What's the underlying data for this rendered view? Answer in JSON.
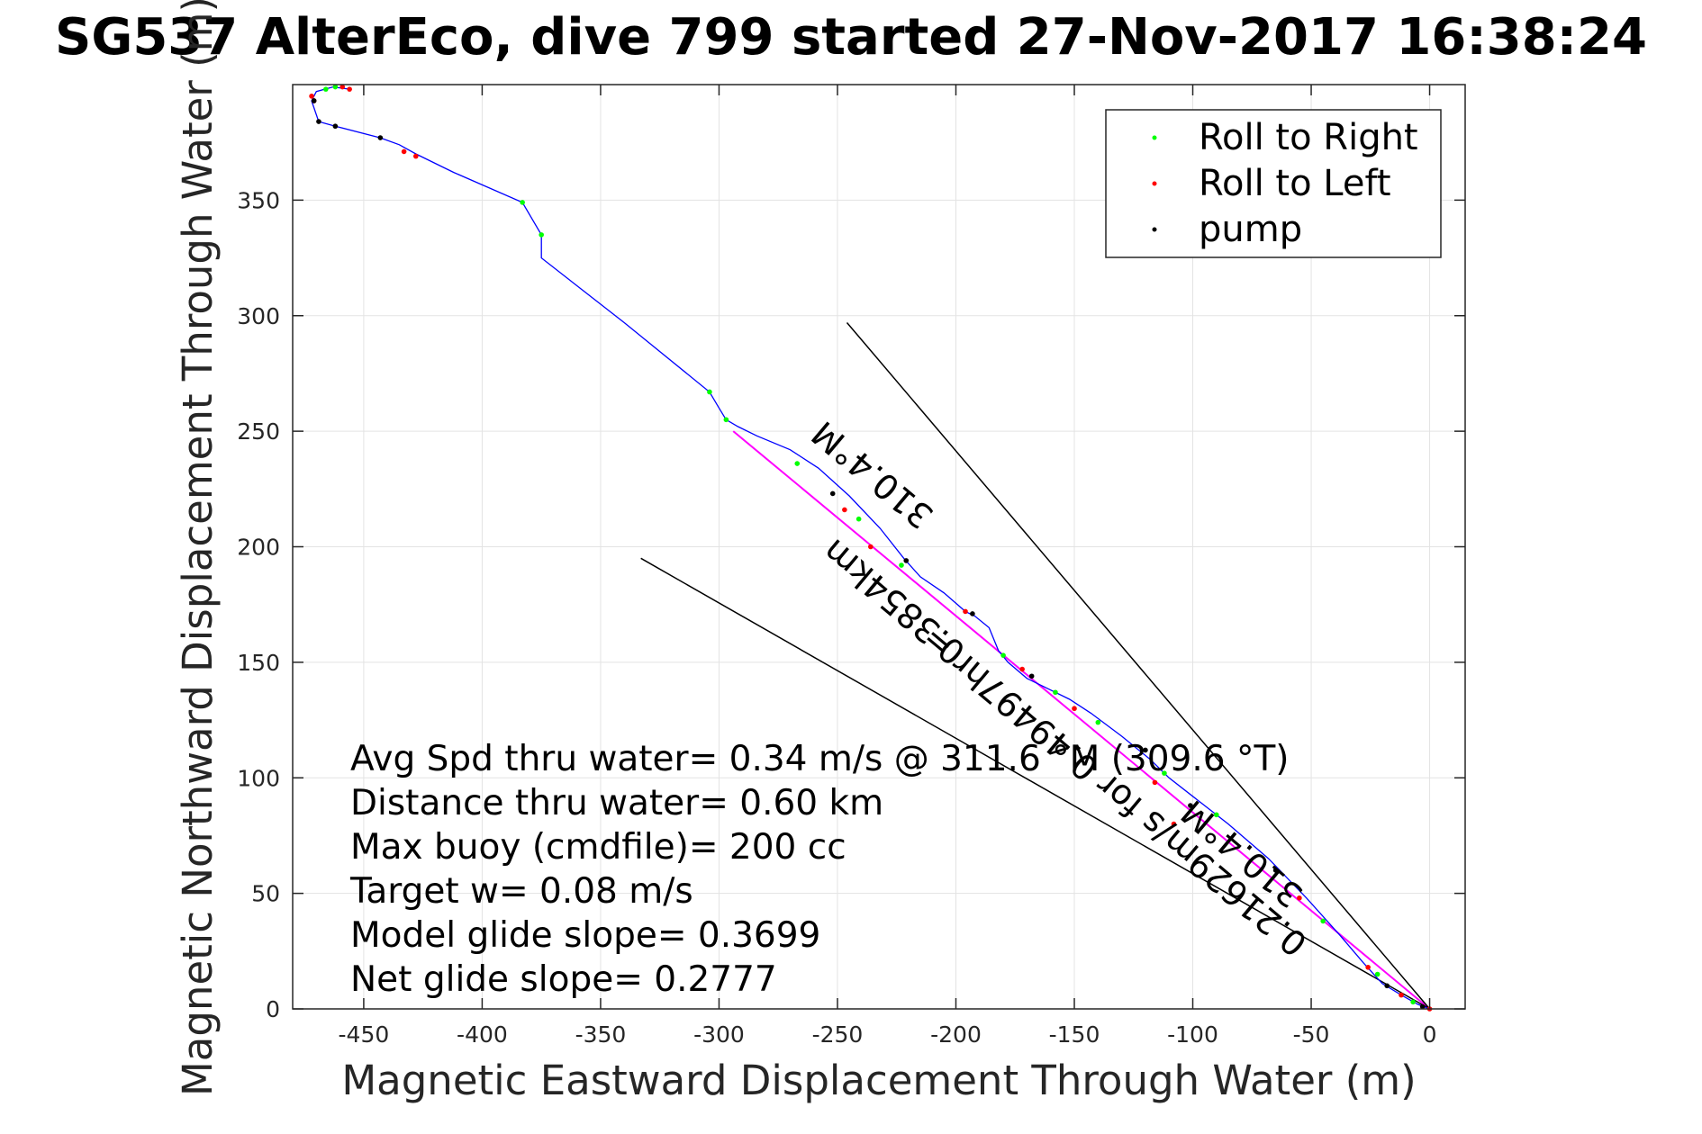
{
  "chart_data": {
    "type": "line",
    "title": "SG537 AlterEco, dive 799 started 27-Nov-2017 16:38:24",
    "xlabel": "Magnetic Eastward Displacement Through Water (m)",
    "ylabel": "Magnetic Northward Displacement Through Water (m)",
    "xlim": [
      -480,
      15
    ],
    "ylim": [
      0,
      400
    ],
    "xticks": [
      -450,
      -400,
      -350,
      -300,
      -250,
      -200,
      -150,
      -100,
      -50,
      0
    ],
    "yticks": [
      0,
      50,
      100,
      150,
      200,
      250,
      300,
      350
    ],
    "grid": true,
    "legend_position": "top-right",
    "legend": [
      {
        "label": "Roll to Right",
        "color": "#00ff00"
      },
      {
        "label": "Roll to Left",
        "color": "#ff0000"
      },
      {
        "label": "pump",
        "color": "#000000"
      }
    ],
    "track": {
      "color": "#0000ff",
      "x": [
        0,
        -5,
        -12,
        -20,
        -28,
        -38,
        -52,
        -68,
        -85,
        -100,
        -110,
        -118,
        -130,
        -143,
        -152,
        -160,
        -170,
        -178,
        -182,
        -186,
        -192,
        -196,
        -205,
        -215,
        -222,
        -232,
        -245,
        -258,
        -270,
        -284,
        -292,
        -297,
        -300,
        -304,
        -340,
        -375,
        -375,
        -383,
        -412,
        -428,
        -435,
        -443,
        -462,
        -469,
        -472,
        -470,
        -463,
        -456
      ],
      "y": [
        0,
        2,
        6,
        11,
        20,
        32,
        48,
        65,
        80,
        92,
        100,
        108,
        118,
        128,
        134,
        138,
        143,
        150,
        155,
        165,
        170,
        172,
        180,
        187,
        195,
        208,
        222,
        234,
        242,
        248,
        252,
        255,
        260,
        267,
        297,
        325,
        335,
        349,
        362,
        370,
        374,
        377,
        382,
        384,
        393,
        397,
        399,
        398
      ]
    },
    "roll_right_points": {
      "color": "#00ff00",
      "x": [
        -7,
        -22,
        -45,
        -90,
        -112,
        -140,
        -158,
        -180,
        -223,
        -241,
        -267,
        -297,
        -304,
        -375,
        -383,
        -466,
        -462
      ],
      "y": [
        3,
        15,
        38,
        84,
        102,
        124,
        137,
        153,
        192,
        212,
        236,
        255,
        267,
        335,
        349,
        398,
        399
      ]
    },
    "roll_left_points": {
      "color": "#ff0000",
      "x": [
        0,
        -12,
        -26,
        -55,
        -108,
        -116,
        -150,
        -172,
        -196,
        -236,
        -247,
        -433,
        -428,
        -472,
        -471,
        -456,
        -459
      ],
      "y": [
        0,
        6,
        18,
        48,
        80,
        98,
        130,
        147,
        172,
        200,
        216,
        371,
        369,
        395,
        393,
        398,
        399
      ]
    },
    "pump_points": {
      "color": "#000000",
      "x": [
        -3,
        -18,
        -65,
        -101,
        -120,
        -168,
        -193,
        -221,
        -252,
        -443,
        -462,
        -469,
        -471
      ],
      "y": [
        1,
        10,
        60,
        88,
        112,
        144,
        171,
        194,
        223,
        377,
        382,
        384,
        393
      ]
    },
    "lines": [
      {
        "color": "#ff00ff",
        "x": [
          0,
          -294
        ],
        "y": [
          0,
          250
        ]
      },
      {
        "color": "#000000",
        "x": [
          0,
          -246
        ],
        "y": [
          0,
          297
        ]
      },
      {
        "color": "#000000",
        "x": [
          0,
          -333
        ],
        "y": [
          0,
          195
        ]
      }
    ],
    "annotations": [
      {
        "text": "310.4°M",
        "x": -232,
        "y": 235,
        "rotation": 220
      },
      {
        "text": "0.3854km",
        "x": -223,
        "y": 180,
        "rotation": 220
      },
      {
        "text": "310.4°M",
        "x": -76,
        "y": 71,
        "rotation": 220
      },
      {
        "text": "0.21629m/s for 0.49497hr =",
        "x": -130,
        "y": 98,
        "rotation": 220
      }
    ],
    "info_lines": [
      "Avg Spd thru water=  0.34 m/s @ 311.6 °M (309.6 °T)",
      "Distance thru water=  0.60 km",
      "Max buoy (cmdfile)= 200 cc",
      "Target w= 0.08 m/s",
      "Model glide slope= 0.3699",
      "Net glide slope= 0.2777"
    ]
  }
}
